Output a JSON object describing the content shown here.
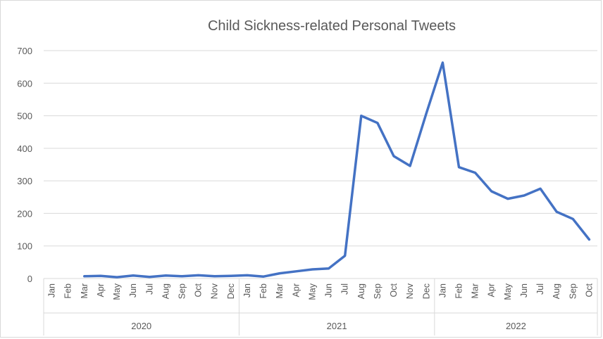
{
  "chart_data": {
    "type": "line",
    "title": "Child Sickness-related Personal Tweets",
    "xlabel": "",
    "ylabel": "",
    "ylim": [
      0,
      700
    ],
    "yticks": [
      "0",
      "100",
      "200",
      "300",
      "400",
      "500",
      "600",
      "700"
    ],
    "grid": true,
    "legend": "none",
    "groups": [
      {
        "label": "2020",
        "categories": [
          "Jan",
          "Feb",
          "Mar",
          "Apr",
          "May",
          "Jun",
          "Jul",
          "Aug",
          "Sep",
          "Oct",
          "Nov",
          "Dec"
        ]
      },
      {
        "label": "2021",
        "categories": [
          "Jan",
          "Feb",
          "Mar",
          "Apr",
          "May",
          "Jun",
          "Jul",
          "Aug",
          "Sep",
          "Oct",
          "Nov",
          "Dec"
        ]
      },
      {
        "label": "2022",
        "categories": [
          "Jan",
          "Feb",
          "Mar",
          "Apr",
          "May",
          "Jun",
          "Jul",
          "Aug",
          "Sep",
          "Oct"
        ]
      }
    ],
    "series": [
      {
        "color": "#4472c4",
        "values": [
          null,
          null,
          7,
          8,
          4,
          9,
          5,
          9,
          7,
          10,
          7,
          8,
          10,
          6,
          16,
          22,
          28,
          31,
          70,
          500,
          478,
          376,
          346,
          508,
          663,
          342,
          325,
          268,
          245,
          255,
          276,
          205,
          183,
          120
        ]
      }
    ]
  }
}
